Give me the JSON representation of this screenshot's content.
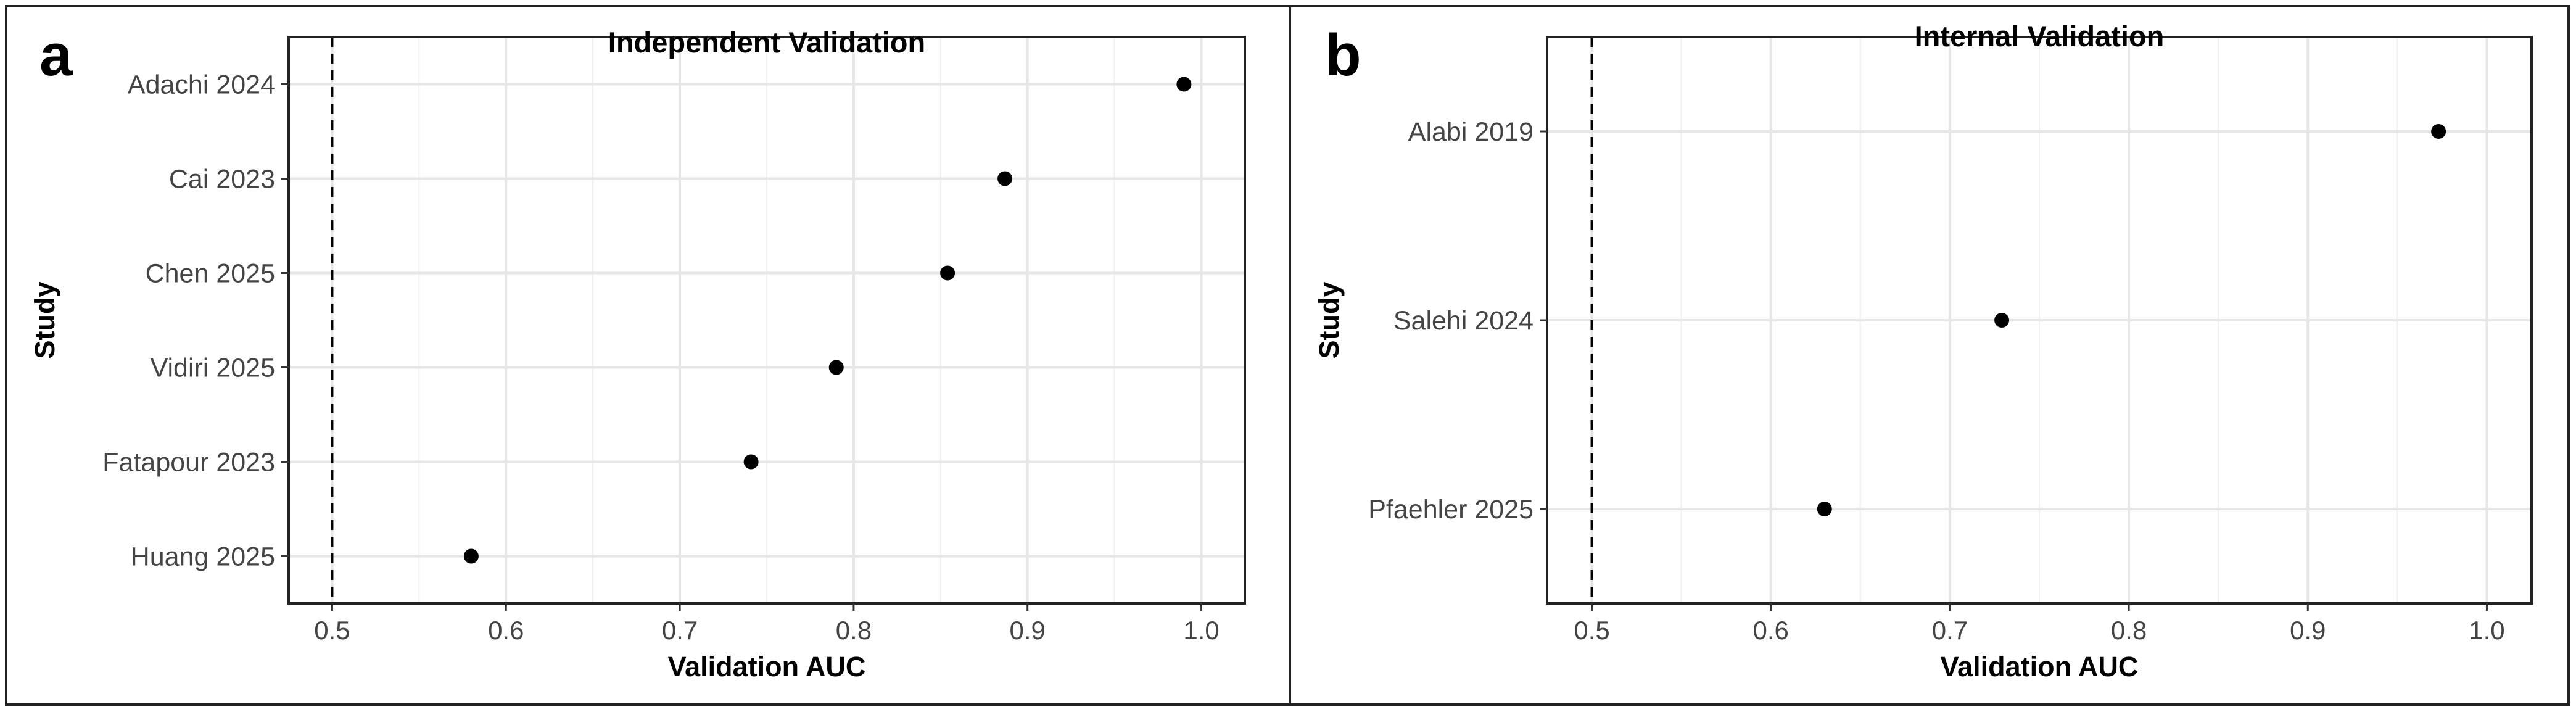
{
  "panels": [
    {
      "letter": "a"
    },
    {
      "letter": "b"
    }
  ],
  "chart_data": [
    {
      "type": "scatter",
      "title": "Independent Validation",
      "xlabel": "Validation AUC",
      "ylabel": "Study",
      "xlim": [
        0.475,
        1.025
      ],
      "xticks": [
        0.5,
        0.6,
        0.7,
        0.8,
        0.9,
        1.0
      ],
      "xtick_labels": [
        "0.5",
        "0.6",
        "0.7",
        "0.8",
        "0.9",
        "1.0"
      ],
      "reference_line": {
        "x": 0.5,
        "style": "dashed"
      },
      "grid": true,
      "categories": [
        "Adachi 2024",
        "Cai 2023",
        "Chen 2025",
        "Vidiri 2025",
        "Fatapour 2023",
        "Huang 2025"
      ],
      "values": [
        0.99,
        0.887,
        0.854,
        0.79,
        0.741,
        0.58
      ],
      "point_color": "#000000"
    },
    {
      "type": "scatter",
      "title": "Internal Validation",
      "xlabel": "Validation AUC",
      "ylabel": "Study",
      "xlim": [
        0.475,
        1.025
      ],
      "xticks": [
        0.5,
        0.6,
        0.7,
        0.8,
        0.9,
        1.0
      ],
      "xtick_labels": [
        "0.5",
        "0.6",
        "0.7",
        "0.8",
        "0.9",
        "1.0"
      ],
      "reference_line": {
        "x": 0.5,
        "style": "dashed"
      },
      "grid": true,
      "categories": [
        "Alabi 2019",
        "Salehi 2024",
        "Pfaehler 2025"
      ],
      "values": [
        0.973,
        0.729,
        0.63
      ],
      "point_color": "#000000"
    }
  ]
}
